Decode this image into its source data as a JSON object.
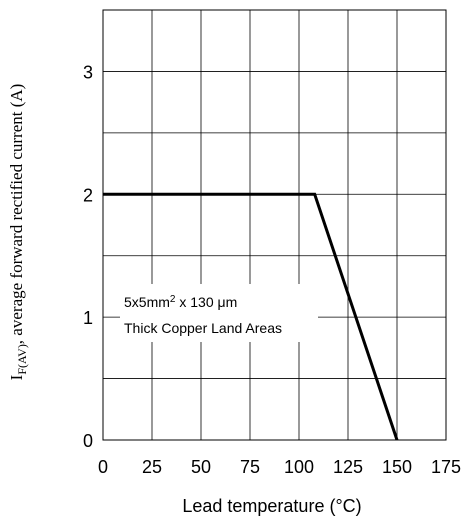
{
  "chart_data": {
    "type": "line",
    "title": "",
    "xlabel": "Lead temperature (°C)",
    "ylabel_main": "I",
    "ylabel_sub": "F(AV)",
    "ylabel_rest": ", average forward rectified current (A)",
    "xlim": [
      0,
      175
    ],
    "ylim": [
      0,
      3.5
    ],
    "x_ticks": [
      0,
      25,
      50,
      75,
      100,
      125,
      150,
      175
    ],
    "y_ticks": [
      0,
      1,
      2,
      3
    ],
    "grid": true,
    "series": [
      {
        "x": [
          0,
          108,
          150
        ],
        "y": [
          2,
          2,
          0
        ]
      }
    ],
    "annotation_line1": "5x5mm",
    "annotation_sup": "2",
    "annotation_line1_rest": " x 130 μm",
    "annotation_line2": "Thick Copper Land Areas"
  }
}
